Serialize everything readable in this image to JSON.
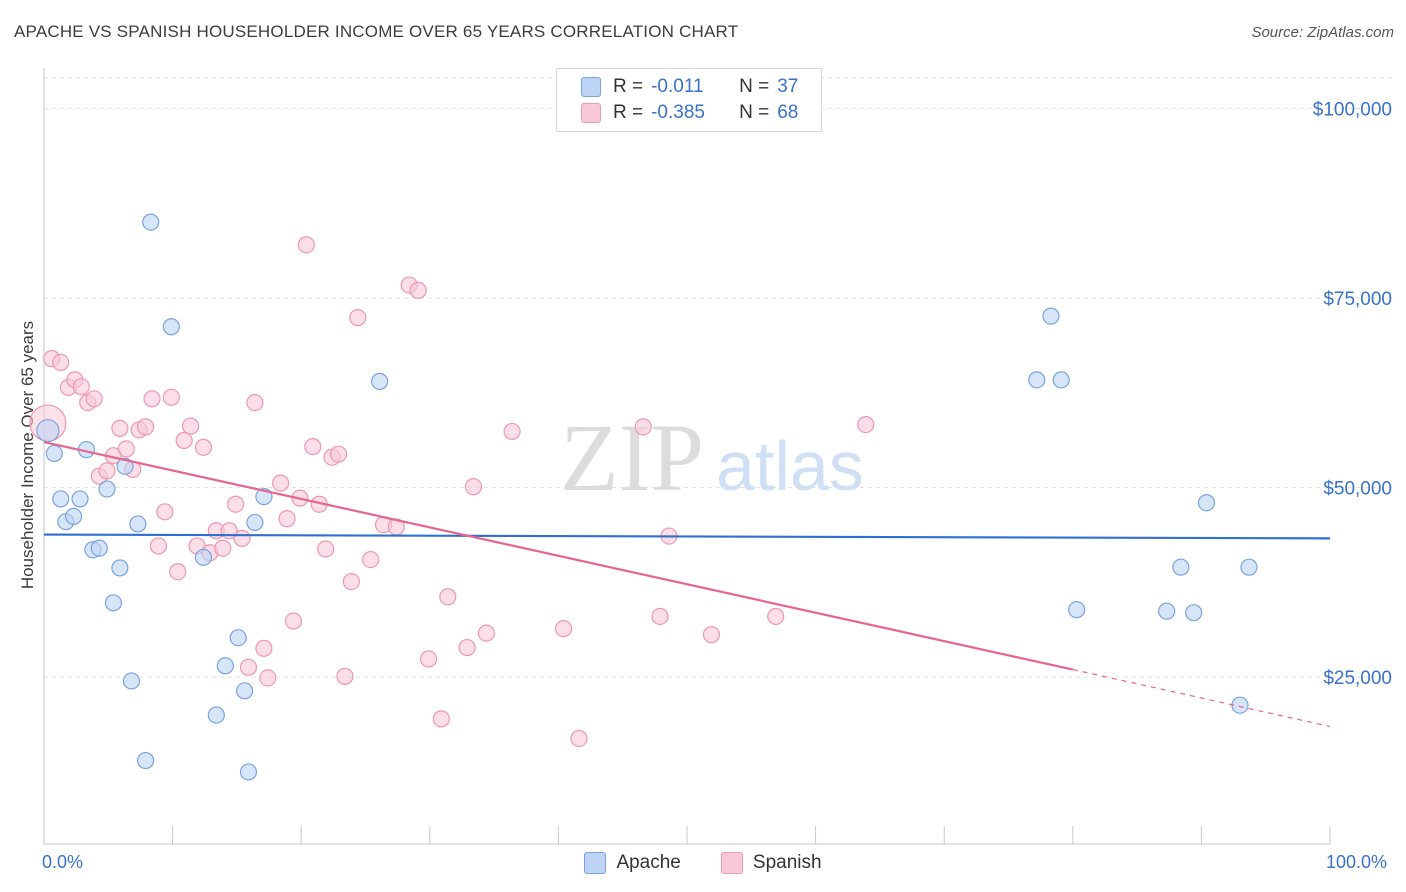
{
  "title": "APACHE VS SPANISH HOUSEHOLDER INCOME OVER 65 YEARS CORRELATION CHART",
  "source": "Source: ZipAtlas.com",
  "watermark": {
    "zip": "ZIP",
    "atlas": "atlas"
  },
  "legend": {
    "rows": [
      {
        "r_label": "R =",
        "r_value": "-0.011",
        "n_label": "N =",
        "n_value": "37",
        "fill": "#bcd3f5",
        "stroke": "#7aa3e0"
      },
      {
        "r_label": "R =",
        "r_value": "-0.385",
        "n_label": "N =",
        "n_value": "68",
        "fill": "#f9c8d7",
        "stroke": "#ee97b0"
      }
    ]
  },
  "bottom_legend": [
    {
      "label": "Apache",
      "fill": "#bcd3f5",
      "stroke": "#7aa3e0"
    },
    {
      "label": "Spanish",
      "fill": "#f9c8d7",
      "stroke": "#ee97b0"
    }
  ],
  "x_axis": {
    "min_label": "0.0%",
    "max_label": "100.0%"
  },
  "colors": {
    "apache": "#2f6fcf",
    "spanish": "#e8648f",
    "tick_text": "#3a72c9"
  },
  "chart_data": {
    "type": "scatter",
    "ylabel": "Householder Income Over 65 years",
    "xlabel": "",
    "xlim": [
      0,
      100
    ],
    "ylim": [
      3000,
      104000
    ],
    "yticks": [
      {
        "value": 25000,
        "label": "$25,000"
      },
      {
        "value": 50000,
        "label": "$50,000"
      },
      {
        "value": 75000,
        "label": "$75,000"
      },
      {
        "value": 100000,
        "label": "$100,000"
      }
    ],
    "grid": true,
    "series": [
      {
        "name": "Apache",
        "color": "#2f6fcf",
        "trend": {
          "x0": 0,
          "y0": 43800,
          "x1": 100,
          "y1": 43300,
          "solid_until": 100
        },
        "points": [
          [
            0.3,
            57500
          ],
          [
            0.8,
            54500
          ],
          [
            1.3,
            48500
          ],
          [
            1.7,
            45500
          ],
          [
            2.3,
            46200
          ],
          [
            2.8,
            48500
          ],
          [
            3.3,
            55000
          ],
          [
            3.8,
            41800
          ],
          [
            4.3,
            42000
          ],
          [
            4.9,
            49800
          ],
          [
            5.4,
            34800
          ],
          [
            5.9,
            39400
          ],
          [
            6.3,
            52800
          ],
          [
            6.8,
            24500
          ],
          [
            7.3,
            45200
          ],
          [
            7.9,
            14000
          ],
          [
            8.3,
            85000
          ],
          [
            9.9,
            71200
          ],
          [
            12.4,
            40800
          ],
          [
            13.4,
            20000
          ],
          [
            14.1,
            26500
          ],
          [
            15.1,
            30200
          ],
          [
            15.6,
            23200
          ],
          [
            15.9,
            12500
          ],
          [
            16.4,
            45400
          ],
          [
            17.1,
            48800
          ],
          [
            26.1,
            64000
          ],
          [
            77.2,
            64200
          ],
          [
            78.3,
            72600
          ],
          [
            79.1,
            64200
          ],
          [
            80.3,
            33900
          ],
          [
            87.3,
            33700
          ],
          [
            88.4,
            39500
          ],
          [
            89.4,
            33500
          ],
          [
            90.4,
            48000
          ],
          [
            93.0,
            21300
          ],
          [
            93.7,
            39500
          ]
        ]
      },
      {
        "name": "Spanish",
        "color": "#e8648f",
        "trend": {
          "x0": 0,
          "y0": 56000,
          "x1": 100,
          "y1": 18500,
          "solid_until": 80
        },
        "points": [
          [
            0.3,
            58500
          ],
          [
            0.6,
            67000
          ],
          [
            1.3,
            66500
          ],
          [
            1.9,
            63200
          ],
          [
            2.4,
            64200
          ],
          [
            2.9,
            63300
          ],
          [
            3.4,
            61200
          ],
          [
            3.9,
            61700
          ],
          [
            4.3,
            51500
          ],
          [
            4.9,
            52200
          ],
          [
            5.4,
            54200
          ],
          [
            5.9,
            57800
          ],
          [
            6.4,
            55100
          ],
          [
            6.9,
            52400
          ],
          [
            7.4,
            57600
          ],
          [
            7.9,
            58000
          ],
          [
            8.4,
            61700
          ],
          [
            8.9,
            42300
          ],
          [
            9.4,
            46800
          ],
          [
            9.9,
            61900
          ],
          [
            10.4,
            38900
          ],
          [
            10.9,
            56200
          ],
          [
            11.4,
            58100
          ],
          [
            11.9,
            42300
          ],
          [
            12.4,
            55300
          ],
          [
            12.9,
            41400
          ],
          [
            13.4,
            44300
          ],
          [
            13.9,
            42000
          ],
          [
            14.4,
            44300
          ],
          [
            14.9,
            47800
          ],
          [
            15.4,
            43300
          ],
          [
            15.9,
            26300
          ],
          [
            16.4,
            61200
          ],
          [
            17.1,
            28800
          ],
          [
            17.4,
            24900
          ],
          [
            18.4,
            50600
          ],
          [
            18.9,
            45900
          ],
          [
            19.4,
            32400
          ],
          [
            19.9,
            48600
          ],
          [
            20.4,
            82000
          ],
          [
            20.9,
            55400
          ],
          [
            21.4,
            47800
          ],
          [
            21.9,
            41900
          ],
          [
            22.4,
            54000
          ],
          [
            22.9,
            54400
          ],
          [
            23.4,
            25100
          ],
          [
            23.9,
            37600
          ],
          [
            24.4,
            72400
          ],
          [
            25.4,
            40500
          ],
          [
            26.4,
            45100
          ],
          [
            27.4,
            44800
          ],
          [
            28.4,
            76700
          ],
          [
            29.1,
            76000
          ],
          [
            29.9,
            27400
          ],
          [
            30.9,
            19500
          ],
          [
            31.4,
            35600
          ],
          [
            32.9,
            28900
          ],
          [
            33.4,
            50100
          ],
          [
            34.4,
            30800
          ],
          [
            36.4,
            57400
          ],
          [
            40.4,
            31400
          ],
          [
            41.6,
            16900
          ],
          [
            46.6,
            58000
          ],
          [
            47.9,
            33000
          ],
          [
            48.6,
            43600
          ],
          [
            51.9,
            30600
          ],
          [
            56.9,
            33000
          ],
          [
            63.9,
            58300
          ]
        ]
      }
    ]
  }
}
